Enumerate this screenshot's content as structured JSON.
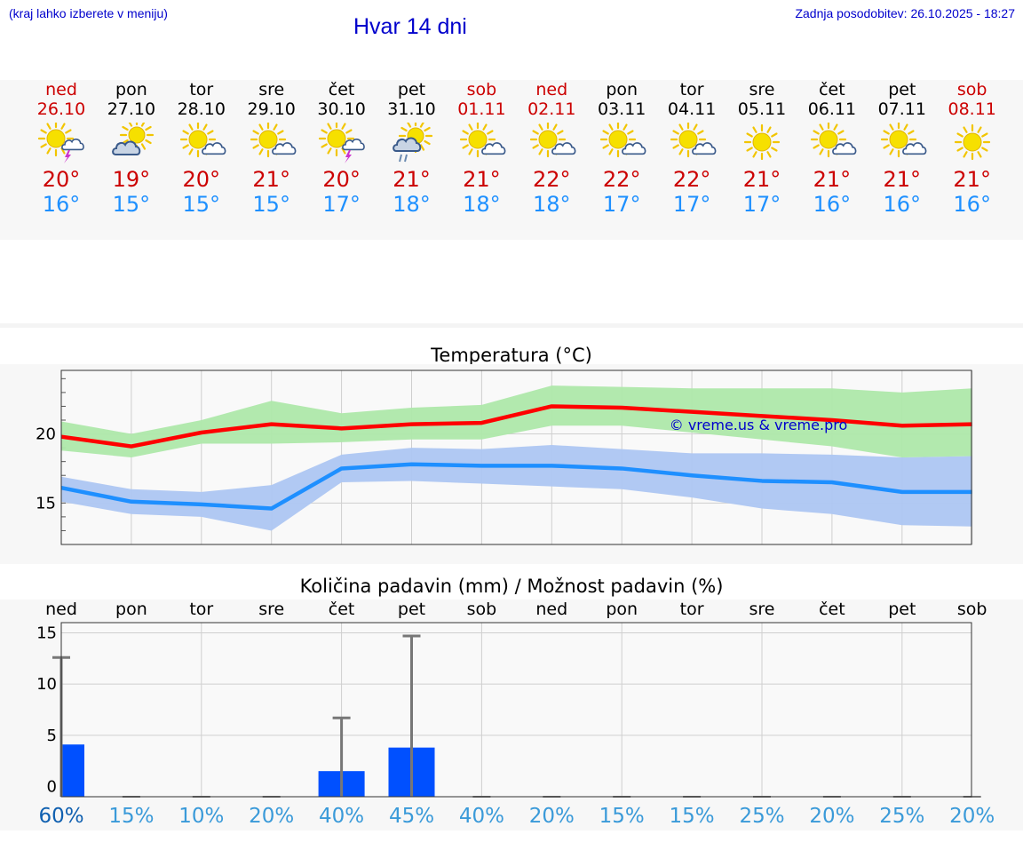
{
  "header": {
    "menu_hint": "(kraj lahko izberete v meniju)",
    "title": "Hvar 14 dni",
    "updated": "Zadnja posodobitev: 26.10.2025 - 18:27"
  },
  "days": [
    {
      "name": "ned",
      "date": "26.10",
      "weekend": true,
      "icon": "sun-cloud-thunder-icon",
      "tmax": "20°",
      "tmin": "16°"
    },
    {
      "name": "pon",
      "date": "27.10",
      "weekend": false,
      "icon": "cloud-sun-icon",
      "tmax": "19°",
      "tmin": "15°"
    },
    {
      "name": "tor",
      "date": "28.10",
      "weekend": false,
      "icon": "sun-cloud-icon",
      "tmax": "20°",
      "tmin": "15°"
    },
    {
      "name": "sre",
      "date": "29.10",
      "weekend": false,
      "icon": "sun-cloud-icon",
      "tmax": "21°",
      "tmin": "15°"
    },
    {
      "name": "čet",
      "date": "30.10",
      "weekend": false,
      "icon": "sun-cloud-thunder-icon",
      "tmax": "20°",
      "tmin": "17°"
    },
    {
      "name": "pet",
      "date": "31.10",
      "weekend": false,
      "icon": "cloud-rain-icon",
      "tmax": "21°",
      "tmin": "18°"
    },
    {
      "name": "sob",
      "date": "01.11",
      "weekend": true,
      "icon": "sun-cloud-icon",
      "tmax": "21°",
      "tmin": "18°"
    },
    {
      "name": "ned",
      "date": "02.11",
      "weekend": true,
      "icon": "sun-cloud-icon",
      "tmax": "22°",
      "tmin": "18°"
    },
    {
      "name": "pon",
      "date": "03.11",
      "weekend": false,
      "icon": "sun-cloud-icon",
      "tmax": "22°",
      "tmin": "17°"
    },
    {
      "name": "tor",
      "date": "04.11",
      "weekend": false,
      "icon": "sun-cloud-icon",
      "tmax": "22°",
      "tmin": "17°"
    },
    {
      "name": "sre",
      "date": "05.11",
      "weekend": false,
      "icon": "sun-icon",
      "tmax": "21°",
      "tmin": "17°"
    },
    {
      "name": "čet",
      "date": "06.11",
      "weekend": false,
      "icon": "sun-cloud-icon",
      "tmax": "21°",
      "tmin": "16°"
    },
    {
      "name": "pet",
      "date": "07.11",
      "weekend": false,
      "icon": "sun-cloud-icon",
      "tmax": "21°",
      "tmin": "16°"
    },
    {
      "name": "sob",
      "date": "08.11",
      "weekend": true,
      "icon": "sun-icon",
      "tmax": "21°",
      "tmin": "16°"
    }
  ],
  "colors": {
    "red": "#cc0000",
    "blue_text": "#1e90ff",
    "link": "#0000cc",
    "tmax_line": "#ff0000",
    "tmax_band": "#aee8aa",
    "tmin_line": "#1e8fff",
    "tmin_band": "#adc6f2",
    "precip_bar": "#0050ff",
    "pct_first": "#1060b0",
    "pct": "#3a9ad9"
  },
  "chart_data": [
    {
      "type": "line",
      "title": "Temperatura (°C)",
      "x": [
        0,
        1,
        2,
        3,
        4,
        5,
        6,
        7,
        8,
        9,
        10,
        11,
        12,
        13
      ],
      "yticks": [
        "15",
        "20"
      ],
      "ylim": [
        12.0,
        24.6
      ],
      "watermark": "© vreme.us & vreme.pro",
      "series": [
        {
          "name": "max",
          "values": [
            19.8,
            19.1,
            20.1,
            20.7,
            20.4,
            20.7,
            20.8,
            22.0,
            21.9,
            21.6,
            21.3,
            21.0,
            20.6,
            20.7
          ],
          "band_low": [
            18.8,
            18.3,
            19.3,
            19.3,
            19.4,
            19.6,
            19.6,
            20.6,
            20.6,
            20.1,
            19.6,
            19.1,
            18.3,
            18.4
          ],
          "band_high": [
            20.9,
            20.0,
            21.0,
            22.4,
            21.5,
            21.9,
            22.1,
            23.5,
            23.4,
            23.3,
            23.3,
            23.3,
            23.0,
            23.3
          ]
        },
        {
          "name": "min",
          "values": [
            16.1,
            15.1,
            14.9,
            14.6,
            17.5,
            17.8,
            17.7,
            17.7,
            17.5,
            17.0,
            16.6,
            16.5,
            15.8,
            15.8
          ],
          "band_low": [
            15.1,
            14.2,
            14.0,
            13.0,
            16.5,
            16.6,
            16.4,
            16.2,
            16.0,
            15.4,
            14.6,
            14.2,
            13.4,
            13.3
          ],
          "band_high": [
            16.9,
            16.0,
            15.8,
            16.3,
            18.5,
            19.0,
            18.9,
            19.2,
            18.9,
            18.6,
            18.6,
            18.5,
            18.3,
            18.4
          ]
        }
      ]
    },
    {
      "type": "bar",
      "title": "Količina padavin (mm) / Možnost padavin (%)",
      "categories": [
        "ned",
        "pon",
        "tor",
        "sre",
        "čet",
        "pet",
        "sob",
        "ned",
        "pon",
        "tor",
        "sre",
        "čet",
        "pet",
        "sob"
      ],
      "yticks": [
        "0",
        "5",
        "10",
        "15"
      ],
      "ylim": [
        -1.0,
        16.0
      ],
      "values": [
        4.1,
        0,
        0,
        0,
        1.5,
        3.8,
        0,
        0,
        0,
        0,
        0,
        0,
        0,
        0
      ],
      "error_high": [
        12.6,
        0,
        0,
        0,
        6.7,
        14.7,
        0,
        0,
        0,
        0,
        0,
        0,
        0,
        0
      ],
      "probability": [
        "60%",
        "15%",
        "10%",
        "20%",
        "40%",
        "45%",
        "40%",
        "20%",
        "15%",
        "15%",
        "25%",
        "20%",
        "25%",
        "20%"
      ]
    }
  ]
}
